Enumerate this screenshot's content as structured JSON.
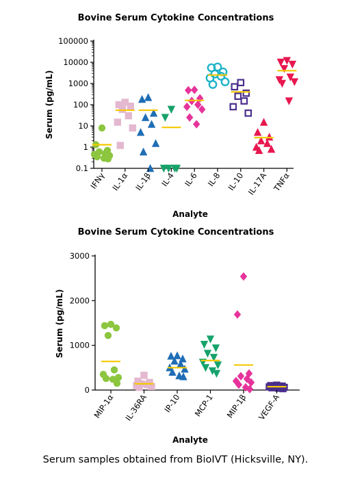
{
  "caption": "Serum samples obtained from BioIVT (Hicksville, NY).",
  "charts": {
    "top": {
      "title": "Bovine Serum Cytokine Concentrations",
      "xlabel": "Analyte",
      "ylabel": "Serum (pg/mL)"
    },
    "bottom": {
      "title": "Bovine Serum Cytokine Concentrations",
      "xlabel": "Analyte",
      "ylabel": "Serum (pg/mL)"
    }
  },
  "chart_data": [
    {
      "type": "scatter",
      "subtype": "dot-plot-with-mean-bars",
      "title": "Bovine Serum Cytokine Concentrations",
      "xlabel": "Analyte",
      "ylabel": "Serum (pg/mL)",
      "yscale": "log",
      "ylim": [
        0.1,
        100000
      ],
      "yticks": [
        0.1,
        1,
        10,
        100,
        1000,
        10000,
        100000
      ],
      "ytick_labels": [
        "0.1",
        "1",
        "10",
        "100",
        "1000",
        "10000",
        "100000"
      ],
      "mean_bar_color": "#f5c800",
      "grid": false,
      "legend": "none",
      "series": [
        {
          "category": "IFNγ",
          "marker": "circle",
          "color": "#8cc63f",
          "mean": 1.3,
          "values": [
            8,
            1.3,
            0.7,
            0.6,
            0.5,
            0.45,
            0.4,
            0.35,
            0.3,
            0.28
          ]
        },
        {
          "category": "IL-1α",
          "marker": "square",
          "color": "#e4b8cf",
          "mean": 55,
          "values": [
            130,
            100,
            85,
            60,
            30,
            15,
            8,
            1.2
          ]
        },
        {
          "category": "IL-1β",
          "marker": "triangle-up",
          "color": "#1f6db5",
          "mean": 55,
          "values": [
            220,
            180,
            40,
            25,
            12,
            5,
            1.5,
            0.6,
            0.1
          ]
        },
        {
          "category": "IL-4",
          "marker": "triangle-down",
          "color": "#16a36b",
          "mean": 8.5,
          "values": [
            60,
            25,
            0.1,
            0.1,
            0.1,
            0.1
          ]
        },
        {
          "category": "IL-6",
          "marker": "diamond",
          "color": "#e6339b",
          "mean": 160,
          "values": [
            500,
            480,
            200,
            150,
            100,
            80,
            60,
            25,
            12
          ]
        },
        {
          "category": "IL-8",
          "marker": "circle-open",
          "color": "#1fb3c8",
          "mean": 2500,
          "values": [
            6000,
            5500,
            3500,
            2800,
            2200,
            1800,
            1200,
            900
          ]
        },
        {
          "category": "IL-10",
          "marker": "square-open",
          "color": "#4b2e8c",
          "mean": 400,
          "values": [
            1100,
            700,
            350,
            250,
            150,
            80,
            40
          ]
        },
        {
          "category": "IL-17A",
          "marker": "triangle-up",
          "color": "#e8174f",
          "mean": 2.8,
          "values": [
            15,
            5,
            3,
            2,
            1.5,
            1,
            0.8,
            0.7
          ]
        },
        {
          "category": "TNFα",
          "marker": "triangle-down",
          "color": "#e8174f",
          "mean": 4000,
          "values": [
            12000,
            10000,
            8000,
            5000,
            2000,
            1500,
            1200,
            1000,
            150
          ]
        }
      ]
    },
    {
      "type": "scatter",
      "subtype": "dot-plot-with-mean-bars",
      "title": "Bovine Serum Cytokine Concentrations",
      "xlabel": "Analyte",
      "ylabel": "Serum (pg/mL)",
      "yscale": "linear",
      "ylim": [
        0,
        3000
      ],
      "yticks": [
        0,
        1000,
        2000,
        3000
      ],
      "ytick_labels": [
        "0",
        "1000",
        "2000",
        "3000"
      ],
      "mean_bar_color": "#f5c800",
      "grid": false,
      "legend": "none",
      "series": [
        {
          "category": "MIP-1α",
          "marker": "circle",
          "color": "#8cc63f",
          "mean": 640,
          "values": [
            1470,
            1440,
            1390,
            1220,
            450,
            350,
            280,
            260,
            240,
            150
          ]
        },
        {
          "category": "IL-36RA",
          "marker": "square",
          "color": "#e4b8cf",
          "mean": 140,
          "values": [
            330,
            200,
            170,
            140,
            120,
            100,
            80,
            60
          ]
        },
        {
          "category": "IP-10",
          "marker": "triangle-up",
          "color": "#1f6db5",
          "mean": 500,
          "values": [
            770,
            760,
            700,
            650,
            580,
            500,
            470,
            400,
            320,
            300
          ]
        },
        {
          "category": "MCP-1",
          "marker": "triangle-down",
          "color": "#16a36b",
          "mean": 660,
          "values": [
            1140,
            1020,
            940,
            820,
            730,
            620,
            560,
            500,
            430,
            370
          ]
        },
        {
          "category": "MIP-1β",
          "marker": "diamond",
          "color": "#e6339b",
          "mean": 560,
          "values": [
            2540,
            1690,
            370,
            310,
            250,
            200,
            170,
            120,
            60,
            20
          ]
        },
        {
          "category": "VEGF-A",
          "marker": "square",
          "color": "#4b2e8c",
          "mean": 75,
          "values": [
            110,
            100,
            90,
            85,
            80,
            70,
            60,
            50,
            40,
            30
          ]
        }
      ]
    }
  ]
}
